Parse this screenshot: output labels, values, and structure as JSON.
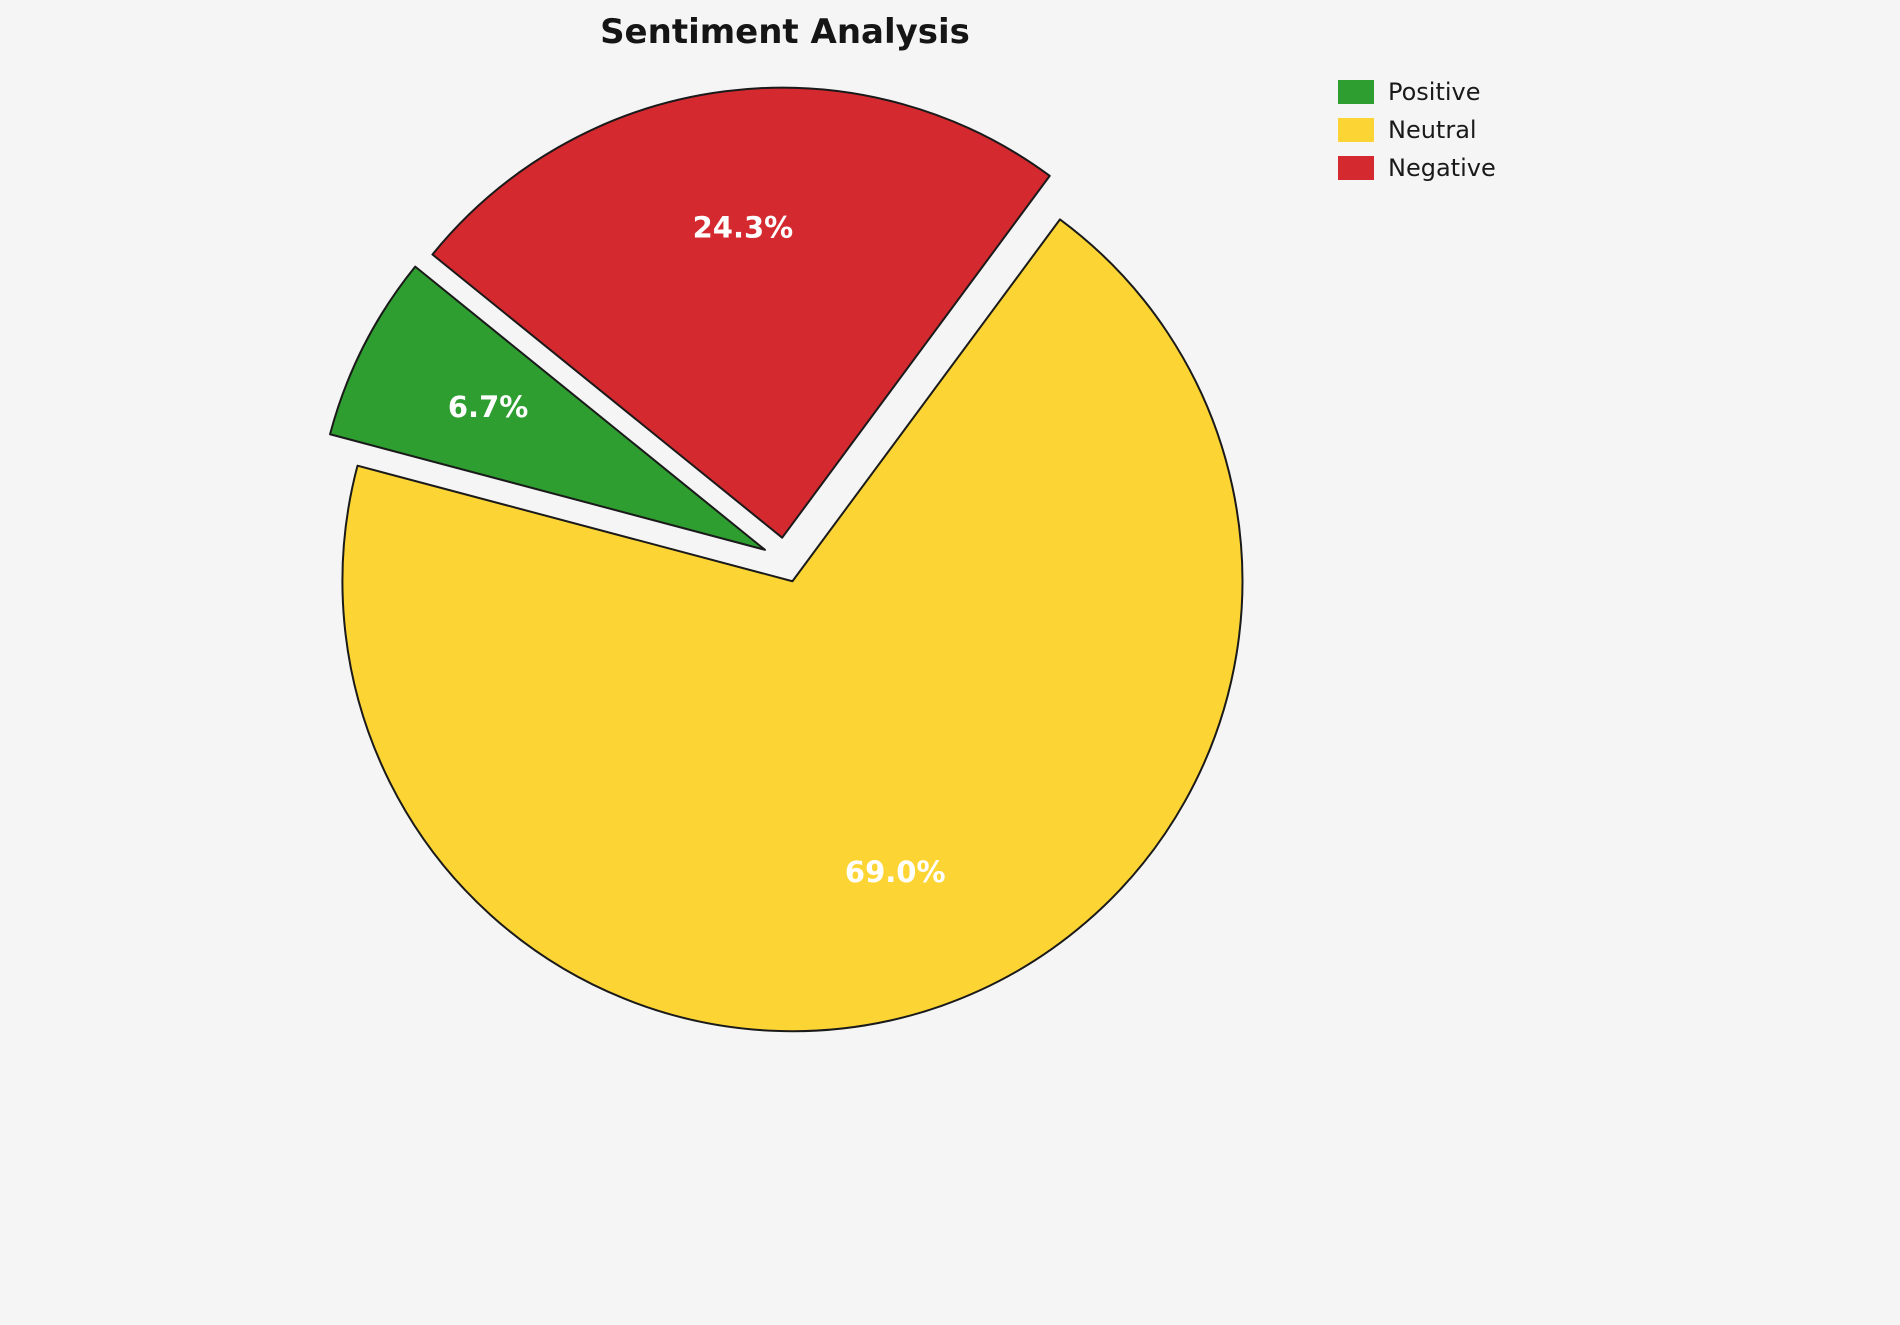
{
  "chart_data": {
    "type": "pie",
    "title": "Sentiment Analysis",
    "labels": [
      "Positive",
      "Neutral",
      "Negative"
    ],
    "values": [
      6.7,
      69.0,
      24.3
    ],
    "pct_labels": [
      "6.7%",
      "69.0%",
      "24.3%"
    ],
    "colors": [
      "#2e9e30",
      "#fcd535",
      "#d3292f"
    ],
    "wedge_edge_color": "#1a1a1a",
    "background": "#f5f5f5",
    "start_angle": 141,
    "direction": "counterclockwise",
    "explode": 0.05,
    "label_distance": 0.69,
    "legend_position": "upper right",
    "legend_entries": [
      {
        "label": "Positive",
        "color": "#2e9e30"
      },
      {
        "label": "Neutral",
        "color": "#fcd535"
      },
      {
        "label": "Negative",
        "color": "#d3292f"
      }
    ]
  }
}
